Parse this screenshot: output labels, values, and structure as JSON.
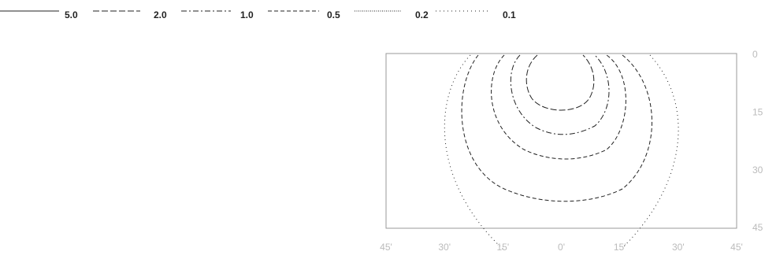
{
  "chart_data": {
    "type": "contour",
    "levels": [
      {
        "value": 5,
        "label": "5.0"
      },
      {
        "value": 2,
        "label": "2.0"
      },
      {
        "value": 1,
        "label": "1.0"
      },
      {
        "value": 0.5,
        "label": "0.5"
      },
      {
        "value": 0.2,
        "label": "0.2"
      },
      {
        "value": 0.1,
        "label": "0.1"
      }
    ],
    "xlim": [
      -45,
      45
    ],
    "xticks": [
      {
        "value": -45,
        "label": "45'"
      },
      {
        "value": -30,
        "label": "30'"
      },
      {
        "value": -15,
        "label": "15'"
      },
      {
        "value": 0,
        "label": "0'"
      },
      {
        "value": 15,
        "label": "15'"
      },
      {
        "value": 30,
        "label": "30'"
      },
      {
        "value": 45,
        "label": "45'"
      }
    ],
    "ylim": [
      0,
      45
    ],
    "yticks": [
      0,
      15,
      30,
      45
    ]
  }
}
